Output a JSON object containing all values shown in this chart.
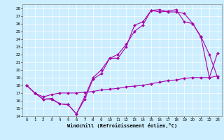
{
  "xlabel": "Windchill (Refroidissement éolien,°C)",
  "background_color": "#cceeff",
  "line_color": "#aa00aa",
  "grid_color": "#ffffff",
  "xlim": [
    -0.5,
    23.5
  ],
  "ylim": [
    14,
    28.5
  ],
  "xticks": [
    0,
    1,
    2,
    3,
    4,
    5,
    6,
    7,
    8,
    9,
    10,
    11,
    12,
    13,
    14,
    15,
    16,
    17,
    18,
    19,
    20,
    21,
    22,
    23
  ],
  "yticks": [
    14,
    15,
    16,
    17,
    18,
    19,
    20,
    21,
    22,
    23,
    24,
    25,
    26,
    27,
    28
  ],
  "line1_x": [
    0,
    1,
    2,
    3,
    4,
    5,
    6,
    7,
    8,
    9,
    10,
    11,
    12,
    13,
    14,
    15,
    16,
    17,
    18,
    19,
    20,
    21,
    22,
    23
  ],
  "line1_y": [
    18,
    17,
    16.2,
    16.2,
    15.6,
    15.5,
    14.3,
    16.5,
    19.0,
    20.0,
    21.5,
    22.0,
    23.3,
    25.0,
    25.8,
    27.7,
    27.8,
    27.5,
    27.5,
    27.3,
    26.0,
    24.3,
    22.0,
    19.0
  ],
  "line2_x": [
    0,
    1,
    2,
    3,
    4,
    5,
    6,
    7,
    8,
    9,
    10,
    11,
    12,
    13,
    14,
    15,
    16,
    17,
    18,
    19,
    20,
    21,
    22,
    23
  ],
  "line2_y": [
    18,
    17,
    16.2,
    16.3,
    15.6,
    15.5,
    14.3,
    16.2,
    18.8,
    19.5,
    21.5,
    21.5,
    23.0,
    25.8,
    26.2,
    27.7,
    27.5,
    27.6,
    27.8,
    26.2,
    26.0,
    24.2,
    19.0,
    22.2
  ],
  "line3_x": [
    0,
    1,
    2,
    3,
    4,
    5,
    6,
    7,
    8,
    9,
    10,
    11,
    12,
    13,
    14,
    15,
    16,
    17,
    18,
    19,
    20,
    21,
    22,
    23
  ],
  "line3_y": [
    18,
    17.0,
    16.5,
    16.8,
    17.0,
    17.0,
    17.0,
    17.1,
    17.2,
    17.4,
    17.5,
    17.6,
    17.8,
    17.9,
    18.0,
    18.2,
    18.4,
    18.6,
    18.7,
    18.9,
    19.0,
    19.0,
    19.0,
    19.2
  ]
}
